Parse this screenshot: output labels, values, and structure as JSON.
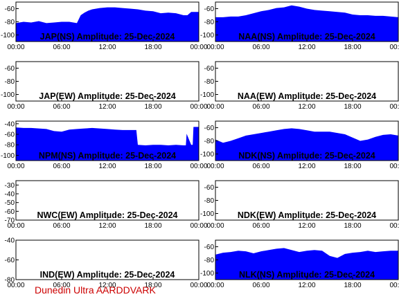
{
  "credit": "Dunedin Ultra AARDDVARK",
  "colors": {
    "fill": "#0000ff",
    "axis": "#000000",
    "credit": "#cc0000"
  },
  "chart_data": [
    {
      "type": "area",
      "title": "JAP(NS) Amplitude: 25-Dec-2024",
      "xlabel": "",
      "ylabel": "",
      "xlim": [
        0,
        24
      ],
      "ylim": [
        -110,
        -50
      ],
      "x_ticks": [
        "00:00",
        "06:00",
        "12:00",
        "18:00",
        "00:00"
      ],
      "y_ticks": [
        -60,
        -80,
        -100
      ],
      "grid": false,
      "x": [
        0,
        1,
        2,
        3,
        4,
        5,
        6,
        7,
        8,
        8.5,
        9,
        9.5,
        10,
        11,
        12,
        13,
        14,
        15,
        16,
        17,
        18,
        19,
        20,
        21,
        22,
        22.5,
        23,
        24
      ],
      "y": [
        -82,
        -80,
        -81,
        -79,
        -82,
        -81,
        -80,
        -80,
        -82,
        -70,
        -66,
        -63,
        -61,
        -59,
        -58,
        -58,
        -59,
        -60,
        -61,
        -63,
        -64,
        -67,
        -66,
        -67,
        -70,
        -70,
        -65,
        -65
      ]
    },
    {
      "type": "area",
      "title": "NAA(NS) Amplitude: 25-Dec-2024",
      "xlabel": "",
      "ylabel": "",
      "xlim": [
        0,
        24
      ],
      "ylim": [
        -110,
        -50
      ],
      "x_ticks": [
        "00:00",
        "06:00",
        "12:00",
        "18:00",
        "00:00"
      ],
      "y_ticks": [
        -60,
        -80,
        -100
      ],
      "grid": false,
      "x": [
        0,
        1,
        2,
        3,
        4,
        5,
        6,
        7,
        8,
        9,
        10,
        11,
        12,
        13,
        14,
        15,
        16,
        17,
        18,
        19,
        20,
        21,
        22,
        23,
        24
      ],
      "y": [
        -73,
        -73,
        -72,
        -72,
        -70,
        -67,
        -64,
        -62,
        -59,
        -58,
        -55,
        -57,
        -60,
        -62,
        -63,
        -64,
        -65,
        -66,
        -69,
        -70,
        -70,
        -71,
        -71,
        -72,
        -73
      ]
    },
    {
      "type": "area",
      "title": "JAP(EW) Amplitude: 25-Dec-2024",
      "xlabel": "",
      "ylabel": "",
      "xlim": [
        0,
        24
      ],
      "ylim": [
        -110,
        -50
      ],
      "x_ticks": [
        "00:00",
        "06:00",
        "12:00",
        "18:00",
        "00:00"
      ],
      "y_ticks": [
        -60,
        -80,
        -100
      ],
      "grid": false,
      "x": [],
      "y": []
    },
    {
      "type": "area",
      "title": "NAA(EW) Amplitude: 25-Dec-2024",
      "xlabel": "",
      "ylabel": "",
      "xlim": [
        0,
        24
      ],
      "ylim": [
        -110,
        -50
      ],
      "x_ticks": [
        "00:00",
        "06:00",
        "12:00",
        "18:00",
        "00:00"
      ],
      "y_ticks": [
        -60,
        -80,
        -100
      ],
      "grid": false,
      "x": [],
      "y": []
    },
    {
      "type": "area",
      "title": "NPM(NS) Amplitude: 25-Dec-2024",
      "xlabel": "",
      "ylabel": "",
      "xlim": [
        0,
        24
      ],
      "ylim": [
        -110,
        -35
      ],
      "x_ticks": [
        "00:00",
        "06:00",
        "12:00",
        "18:00",
        "00:00"
      ],
      "y_ticks": [
        -40,
        -60,
        -80,
        -100
      ],
      "grid": false,
      "x": [
        0,
        1,
        2,
        3,
        4,
        5,
        6,
        7,
        8,
        9,
        10,
        11,
        12,
        13,
        14,
        15,
        15.8,
        16,
        17,
        18,
        19,
        20,
        21,
        22,
        22.3,
        22.4,
        23,
        23.2,
        23.3,
        24
      ],
      "y": [
        -47,
        -48,
        -48,
        -49,
        -50,
        -54,
        -55,
        -51,
        -50,
        -49,
        -48,
        -49,
        -50,
        -51,
        -52,
        -52,
        -52,
        -80,
        -81,
        -80,
        -80,
        -81,
        -80,
        -81,
        -81,
        -59,
        -80,
        -80,
        -46,
        -46
      ]
    },
    {
      "type": "area",
      "title": "NDK(NS) Amplitude: 25-Dec-2024",
      "xlabel": "",
      "ylabel": "",
      "xlim": [
        0,
        24
      ],
      "ylim": [
        -110,
        -50
      ],
      "x_ticks": [
        "00:00",
        "06:00",
        "12:00",
        "18:00",
        "00:00"
      ],
      "y_ticks": [
        -60,
        -80,
        -100
      ],
      "grid": false,
      "x": [
        0,
        1,
        2,
        3,
        4,
        5,
        6,
        7,
        8,
        9,
        10,
        11,
        12,
        13,
        14,
        15,
        16,
        17,
        18,
        19,
        20,
        21,
        22,
        23,
        24
      ],
      "y": [
        -78,
        -83,
        -80,
        -76,
        -72,
        -70,
        -68,
        -66,
        -64,
        -62,
        -61,
        -62,
        -64,
        -66,
        -66,
        -66,
        -68,
        -70,
        -75,
        -80,
        -78,
        -74,
        -71,
        -70,
        -72
      ]
    },
    {
      "type": "area",
      "title": "NWC(EW) Amplitude: 25-Dec-2024",
      "xlabel": "",
      "ylabel": "",
      "xlim": [
        0,
        24
      ],
      "ylim": [
        -70,
        -25
      ],
      "x_ticks": [
        "00:00",
        "06:00",
        "12:00",
        "18:00",
        "00:00"
      ],
      "y_ticks": [
        -30,
        -40,
        -50,
        -60,
        -70
      ],
      "grid": false,
      "x": [],
      "y": []
    },
    {
      "type": "area",
      "title": "NDK(EW) Amplitude: 25-Dec-2024",
      "xlabel": "",
      "ylabel": "",
      "xlim": [
        0,
        24
      ],
      "ylim": [
        -110,
        -50
      ],
      "x_ticks": [
        "00:00",
        "06:00",
        "12:00",
        "18:00",
        "00:00"
      ],
      "y_ticks": [
        -60,
        -80,
        -100
      ],
      "grid": false,
      "x": [],
      "y": []
    },
    {
      "type": "area",
      "title": "IND(EW) Amplitude: 25-Dec-2024",
      "xlabel": "",
      "ylabel": "",
      "xlim": [
        0,
        24
      ],
      "ylim": [
        -80,
        -40
      ],
      "x_ticks": [
        "00:00",
        "06:00",
        "12:00",
        "18:00",
        "00:00"
      ],
      "y_ticks": [
        -40,
        -60,
        -80
      ],
      "grid": false,
      "x": [],
      "y": []
    },
    {
      "type": "area",
      "title": "NLK(NS) Amplitude: 25-Dec-2024",
      "xlabel": "",
      "ylabel": "",
      "xlim": [
        0,
        24
      ],
      "ylim": [
        -110,
        -50
      ],
      "x_ticks": [
        "00:00",
        "06:00",
        "12:00",
        "18:00",
        "00:00"
      ],
      "y_ticks": [
        -60,
        -80,
        -100
      ],
      "grid": false,
      "x": [
        0,
        1,
        2,
        3,
        4,
        5,
        6,
        7,
        8,
        9,
        10,
        11,
        12,
        13,
        14,
        14.5,
        15,
        16,
        17,
        18,
        19,
        20,
        21,
        22,
        23,
        24
      ],
      "y": [
        -72,
        -69,
        -68,
        -66,
        -67,
        -70,
        -67,
        -65,
        -63,
        -62,
        -65,
        -68,
        -66,
        -65,
        -66,
        -70,
        -74,
        -77,
        -71,
        -69,
        -68,
        -66,
        -68,
        -67,
        -66,
        -66
      ]
    }
  ]
}
